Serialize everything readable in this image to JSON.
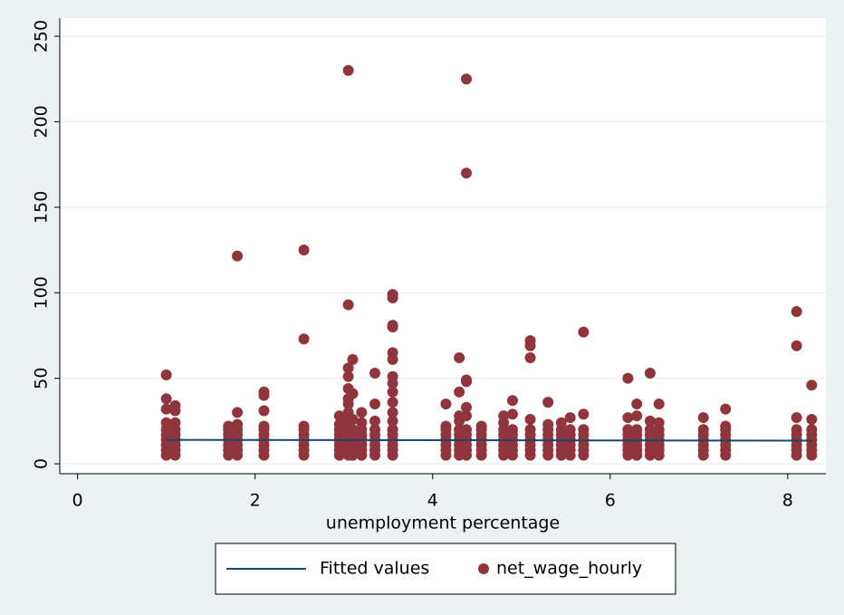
{
  "chart_data": {
    "type": "scatter",
    "xlabel": "unemployment percentage",
    "xlim": [
      -0.2,
      8.43
    ],
    "ylim": [
      -5.8,
      260.6
    ],
    "xticks": [
      0,
      2,
      4,
      6,
      8
    ],
    "yticks": [
      0,
      50,
      100,
      150,
      200,
      250
    ],
    "grid": true,
    "legend": "bottom",
    "series": [
      {
        "name": "Fitted values",
        "type": "line",
        "color": "#1a476f",
        "x": [
          1,
          8.27
        ],
        "values": [
          14,
          13.5
        ]
      },
      {
        "name": "net_wage_hourly",
        "type": "scatter",
        "color": "#90353b",
        "x": [
          1,
          1,
          1,
          1,
          1,
          1,
          1,
          1,
          1,
          1,
          1.1,
          1.1,
          1.1,
          1.1,
          1.1,
          1.1,
          1.1,
          1.1,
          1.1,
          1.7,
          1.7,
          1.7,
          1.7,
          1.7,
          1.7,
          1.7,
          1.8,
          1.8,
          1.8,
          1.8,
          1.8,
          1.8,
          1.8,
          1.8,
          1.8,
          2.1,
          2.1,
          2.1,
          2.1,
          2.1,
          2.1,
          2.1,
          2.1,
          2.1,
          2.1,
          2.55,
          2.55,
          2.55,
          2.55,
          2.55,
          2.55,
          2.55,
          2.55,
          2.55,
          2.95,
          2.95,
          2.95,
          2.95,
          2.95,
          2.95,
          2.95,
          2.95,
          3.05,
          3.05,
          3.05,
          3.05,
          3.05,
          3.05,
          3.05,
          3.05,
          3.05,
          3.05,
          3.05,
          3.05,
          3.05,
          3.05,
          3.05,
          3.1,
          3.1,
          3.1,
          3.1,
          3.1,
          3.1,
          3.1,
          3.1,
          3.1,
          3.2,
          3.2,
          3.2,
          3.2,
          3.2,
          3.2,
          3.2,
          3.2,
          3.35,
          3.35,
          3.35,
          3.35,
          3.35,
          3.35,
          3.35,
          3.35,
          3.35,
          3.55,
          3.55,
          3.55,
          3.55,
          3.55,
          3.55,
          3.55,
          3.55,
          3.55,
          3.55,
          3.55,
          3.55,
          3.55,
          3.55,
          3.55,
          3.55,
          3.55,
          3.55,
          4.15,
          4.15,
          4.15,
          4.15,
          4.15,
          4.15,
          4.15,
          4.15,
          4.3,
          4.3,
          4.3,
          4.3,
          4.3,
          4.3,
          4.3,
          4.3,
          4.3,
          4.3,
          4.38,
          4.38,
          4.38,
          4.38,
          4.38,
          4.38,
          4.38,
          4.38,
          4.38,
          4.38,
          4.38,
          4.38,
          4.55,
          4.55,
          4.55,
          4.55,
          4.55,
          4.55,
          4.55,
          4.8,
          4.8,
          4.8,
          4.8,
          4.8,
          4.8,
          4.8,
          4.8,
          4.9,
          4.9,
          4.9,
          4.9,
          4.9,
          4.9,
          4.9,
          4.9,
          5.1,
          5.1,
          5.1,
          5.1,
          5.1,
          5.1,
          5.1,
          5.1,
          5.1,
          5.1,
          5.3,
          5.3,
          5.3,
          5.3,
          5.3,
          5.3,
          5.3,
          5.3,
          5.45,
          5.45,
          5.45,
          5.45,
          5.45,
          5.45,
          5.45,
          5.55,
          5.55,
          5.55,
          5.55,
          5.55,
          5.55,
          5.55,
          5.7,
          5.7,
          5.7,
          5.7,
          5.7,
          5.7,
          5.7,
          5.7,
          6.2,
          6.2,
          6.2,
          6.2,
          6.2,
          6.2,
          6.2,
          6.2,
          6.3,
          6.3,
          6.3,
          6.3,
          6.3,
          6.3,
          6.3,
          6.3,
          6.45,
          6.45,
          6.45,
          6.45,
          6.45,
          6.45,
          6.45,
          6.45,
          6.55,
          6.55,
          6.55,
          6.55,
          6.55,
          6.55,
          6.55,
          6.55,
          7.05,
          7.05,
          7.05,
          7.05,
          7.05,
          7.05,
          7.05,
          7.3,
          7.3,
          7.3,
          7.3,
          7.3,
          7.3,
          7.3,
          7.3,
          8.1,
          8.1,
          8.1,
          8.1,
          8.1,
          8.1,
          8.1,
          8.1,
          8.1,
          8.27,
          8.27,
          8.27,
          8.27,
          8.27,
          8.27,
          8.27,
          8.27
        ],
        "values": [
          5,
          8,
          11,
          14,
          17,
          20,
          24,
          32,
          38,
          52,
          5,
          8,
          11,
          14,
          17,
          20,
          24,
          31,
          34,
          5,
          8,
          11,
          14,
          17,
          20,
          22,
          5,
          8,
          11,
          14,
          17,
          20,
          23,
          30,
          121.5,
          5,
          8,
          11,
          14,
          17,
          20,
          22,
          31,
          40,
          42,
          5,
          8,
          11,
          14,
          17,
          20,
          22,
          73,
          125,
          5,
          8,
          11,
          14,
          17,
          20,
          23,
          28,
          5,
          8,
          11,
          14,
          17,
          20,
          25,
          30,
          35,
          38,
          44,
          51,
          56,
          93,
          230,
          5,
          8,
          11,
          14,
          17,
          20,
          26,
          41,
          61,
          5,
          8,
          11,
          14,
          17,
          20,
          24,
          30,
          5,
          8,
          11,
          14,
          17,
          20,
          25,
          35,
          53,
          5,
          8,
          11,
          14,
          17,
          20,
          25,
          30,
          36,
          42,
          47,
          51,
          61,
          65,
          80,
          81,
          97,
          99,
          5,
          8,
          11,
          14,
          17,
          20,
          22,
          35,
          5,
          8,
          11,
          14,
          17,
          20,
          25,
          28,
          42,
          62,
          5,
          8,
          11,
          14,
          17,
          20,
          28,
          33,
          48,
          49,
          170,
          225,
          5,
          8,
          11,
          14,
          17,
          20,
          22,
          5,
          8,
          11,
          14,
          17,
          20,
          24,
          28,
          5,
          8,
          11,
          14,
          17,
          20,
          29,
          37,
          5,
          8,
          11,
          14,
          17,
          20,
          26,
          62,
          69,
          72,
          5,
          8,
          11,
          14,
          17,
          20,
          23,
          36,
          5,
          8,
          11,
          14,
          17,
          20,
          24,
          5,
          8,
          11,
          14,
          17,
          20,
          27,
          5,
          8,
          11,
          14,
          17,
          20,
          29,
          77,
          5,
          8,
          11,
          14,
          17,
          20,
          27,
          50,
          5,
          8,
          11,
          14,
          17,
          20,
          28,
          35,
          5,
          8,
          11,
          14,
          17,
          20,
          25,
          53,
          5,
          8,
          11,
          14,
          17,
          20,
          24,
          35,
          5,
          8,
          11,
          14,
          17,
          20,
          27,
          5,
          8,
          11,
          14,
          17,
          20,
          22,
          32,
          5,
          8,
          11,
          14,
          17,
          20,
          27,
          69,
          89,
          5,
          8,
          11,
          14,
          17,
          20,
          26,
          46
        ]
      }
    ]
  }
}
